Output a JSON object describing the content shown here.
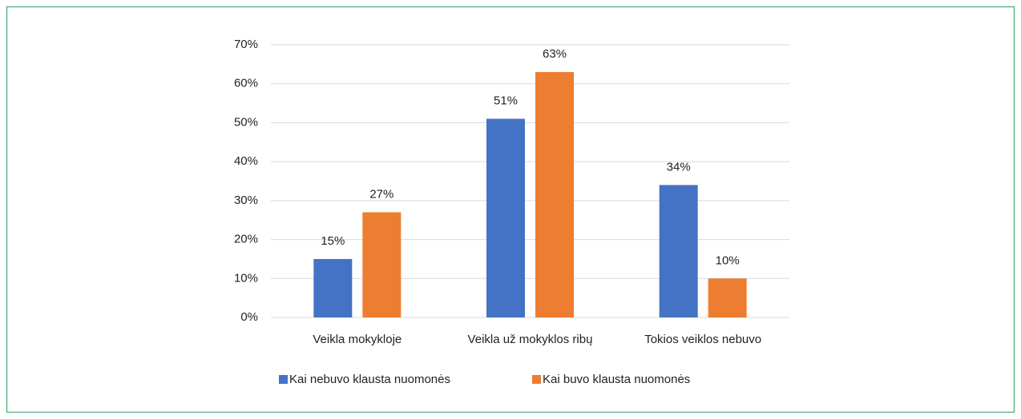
{
  "chart_data": {
    "type": "bar",
    "categories": [
      "Veikla mokykloje",
      "Veikla už mokyklos ribų",
      "Tokios veiklos nebuvo"
    ],
    "series": [
      {
        "name": "Kai nebuvo klausta nuomonės",
        "color": "#4472c4",
        "values": [
          15,
          51,
          34
        ],
        "value_labels": [
          "15%",
          "51%",
          "34%"
        ]
      },
      {
        "name": "Kai buvo klausta nuomonės",
        "color": "#ed7d31",
        "values": [
          27,
          63,
          10
        ],
        "value_labels": [
          "27%",
          "63%",
          "10%"
        ]
      }
    ],
    "ylim": [
      0,
      70
    ],
    "yticks": [
      {
        "value": 0,
        "label": "0%"
      },
      {
        "value": 10,
        "label": "10%"
      },
      {
        "value": 20,
        "label": "20%"
      },
      {
        "value": 30,
        "label": "30%"
      },
      {
        "value": 40,
        "label": "40%"
      },
      {
        "value": 50,
        "label": "50%"
      },
      {
        "value": 60,
        "label": "60%"
      },
      {
        "value": 70,
        "label": "70%"
      }
    ],
    "grid": true,
    "legend": "bottom"
  }
}
